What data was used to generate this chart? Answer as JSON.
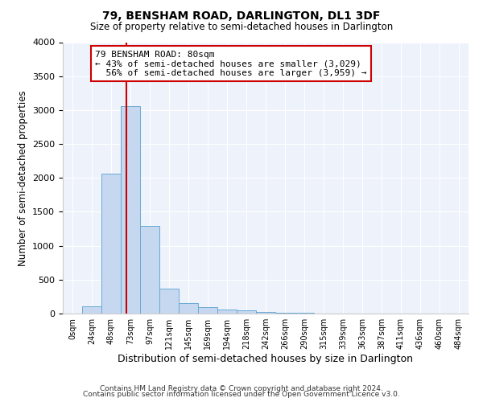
{
  "title": "79, BENSHAM ROAD, DARLINGTON, DL1 3DF",
  "subtitle": "Size of property relative to semi-detached houses in Darlington",
  "xlabel": "Distribution of semi-detached houses by size in Darlington",
  "ylabel": "Number of semi-detached properties",
  "categories": [
    "0sqm",
    "24sqm",
    "48sqm",
    "73sqm",
    "97sqm",
    "121sqm",
    "145sqm",
    "169sqm",
    "194sqm",
    "218sqm",
    "242sqm",
    "266sqm",
    "290sqm",
    "315sqm",
    "339sqm",
    "363sqm",
    "387sqm",
    "411sqm",
    "436sqm",
    "460sqm",
    "484sqm"
  ],
  "bar_heights": [
    0,
    110,
    2060,
    3060,
    1290,
    370,
    155,
    90,
    65,
    50,
    28,
    12,
    10,
    4,
    2,
    1,
    0,
    0,
    0,
    0,
    0
  ],
  "bar_color": "#c5d8f0",
  "bar_edge_color": "#6aaad4",
  "red_line_color": "#cc0000",
  "annotation_line1": "79 BENSHAM ROAD: 80sqm",
  "annotation_line2": "← 43% of semi-detached houses are smaller (3,029)",
  "annotation_line3": "  56% of semi-detached houses are larger (3,959) →",
  "annotation_box_color": "#ffffff",
  "annotation_box_edge": "#cc0000",
  "ylim": [
    0,
    4000
  ],
  "yticks": [
    0,
    500,
    1000,
    1500,
    2000,
    2500,
    3000,
    3500,
    4000
  ],
  "background_color": "#edf2fb",
  "footer_line1": "Contains HM Land Registry data © Crown copyright and database right 2024.",
  "footer_line2": "Contains public sector information licensed under the Open Government Licence v3.0.",
  "bin_width": 24,
  "num_bins": 21
}
